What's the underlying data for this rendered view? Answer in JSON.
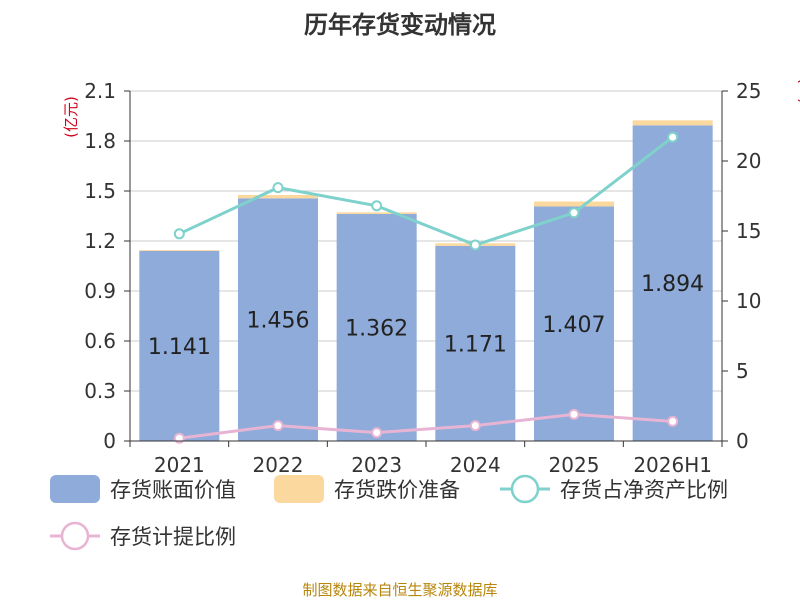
{
  "chart_data": {
    "type": "bar",
    "title": "历年存货变动情况",
    "y_left_unit": "(亿元)",
    "y_right_unit": "(%)",
    "categories": [
      "2021",
      "2022",
      "2023",
      "2024",
      "2025",
      "2026H1"
    ],
    "ylim_left": [
      0,
      2.1
    ],
    "yticks_left": [
      "0",
      "0.3",
      "0.6",
      "0.9",
      "1.2",
      "1.5",
      "1.8",
      "2.1"
    ],
    "ylim_right": [
      0,
      25
    ],
    "yticks_right": [
      "0",
      "5",
      "10",
      "15",
      "20",
      "25"
    ],
    "grid": true,
    "legend_position": "bottom",
    "series": [
      {
        "name": "存货账面价值",
        "type": "bar",
        "axis": "left",
        "color": "#8eabd9",
        "values": [
          1.141,
          1.456,
          1.362,
          1.171,
          1.407,
          1.894
        ],
        "labels": [
          "1.141",
          "1.456",
          "1.362",
          "1.171",
          "1.407",
          "1.894"
        ]
      },
      {
        "name": "存货跌价准备",
        "type": "bar-stacked",
        "axis": "left",
        "color": "#fbd89e",
        "values": [
          0.005,
          0.02,
          0.01,
          0.015,
          0.03,
          0.03
        ]
      },
      {
        "name": "存货占净资产比例",
        "type": "line",
        "axis": "right",
        "color": "#7fd1cc",
        "values": [
          14.8,
          18.1,
          16.8,
          14.0,
          16.3,
          21.7
        ]
      },
      {
        "name": "存货计提比例",
        "type": "line",
        "axis": "right",
        "color": "#e8b4d4",
        "values": [
          0.2,
          1.1,
          0.6,
          1.1,
          1.9,
          1.4
        ]
      }
    ],
    "source": "制图数据来自恒生聚源数据库"
  }
}
